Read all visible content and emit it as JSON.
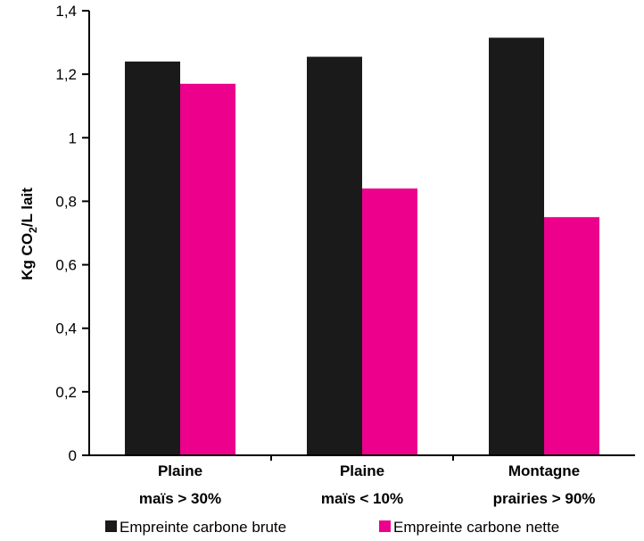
{
  "chart_data": {
    "type": "bar",
    "title": "",
    "ylabel_parts": {
      "pre": "Kg CO",
      "sub": "2",
      "post": "/L lait"
    },
    "categories": [
      {
        "line1": "Plaine",
        "line2": "maïs > 30%"
      },
      {
        "line1": "Plaine",
        "line2": "maïs < 10%"
      },
      {
        "line1": "Montagne",
        "line2": "prairies > 90%"
      }
    ],
    "series": [
      {
        "name": "Empreinte carbone brute",
        "color": "#1a1a1a",
        "values": [
          1.24,
          1.255,
          1.315
        ]
      },
      {
        "name": "Empreinte carbone nette",
        "color": "#ec008c",
        "values": [
          1.17,
          0.84,
          0.75
        ]
      }
    ],
    "yticks": [
      "0",
      "0,2",
      "0,4",
      "0,6",
      "0,8",
      "1",
      "1,2",
      "1,4"
    ],
    "ylim": [
      0,
      1.4
    ],
    "grid": false,
    "legend_position": "bottom"
  }
}
